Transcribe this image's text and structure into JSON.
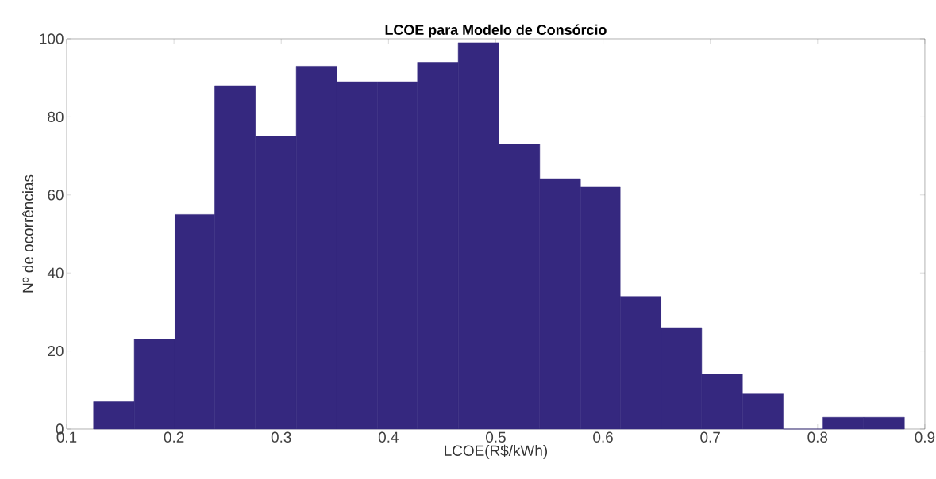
{
  "chart_data": {
    "type": "histogram",
    "title": "LCOE para Modelo de Consórcio",
    "xlabel": "LCOE(R$/kWh)",
    "ylabel": "Nº de ocorrências",
    "bins": [
      0.125,
      0.163,
      0.201,
      0.238,
      0.276,
      0.314,
      0.352,
      0.39,
      0.427,
      0.465,
      0.503,
      0.541,
      0.579,
      0.616,
      0.654,
      0.692,
      0.73,
      0.768,
      0.805,
      0.843,
      0.881
    ],
    "values": [
      7,
      23,
      55,
      88,
      75,
      93,
      89,
      89,
      94,
      99,
      73,
      64,
      62,
      34,
      26,
      14,
      9,
      0,
      3,
      3
    ],
    "color": "#35287f",
    "xlim": [
      0.1,
      0.9
    ],
    "xticks": [
      0.1,
      0.2,
      0.3,
      0.4,
      0.5,
      0.6,
      0.7,
      0.8,
      0.9
    ],
    "ylim": [
      0,
      100
    ],
    "yticks": [
      0,
      20,
      40,
      60,
      80,
      100
    ]
  }
}
